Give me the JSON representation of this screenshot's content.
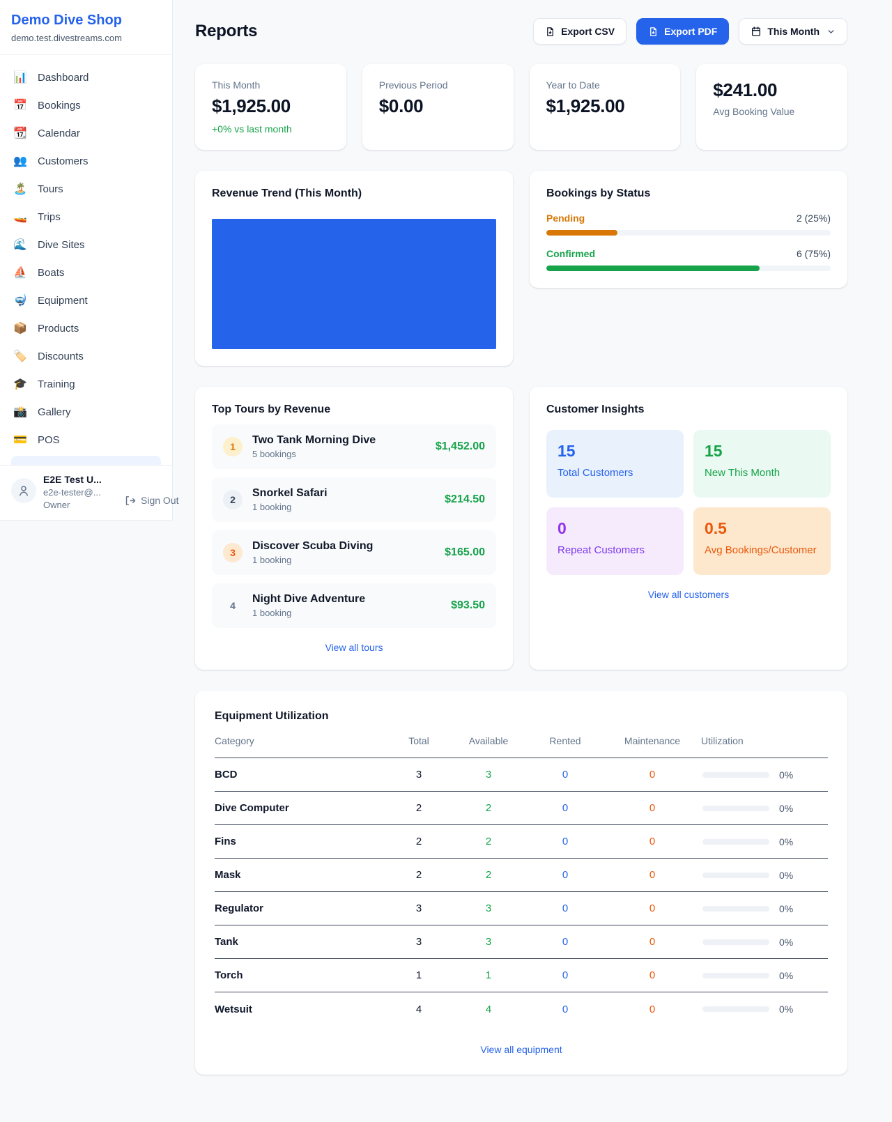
{
  "sidebar": {
    "brand": {
      "name": "Demo Dive Shop",
      "domain": "demo.test.divestreams.com"
    },
    "items": [
      {
        "icon": "📊",
        "label": "Dashboard"
      },
      {
        "icon": "📅",
        "label": "Bookings"
      },
      {
        "icon": "📆",
        "label": "Calendar"
      },
      {
        "icon": "👥",
        "label": "Customers"
      },
      {
        "icon": "🏝️",
        "label": "Tours"
      },
      {
        "icon": "🚤",
        "label": "Trips"
      },
      {
        "icon": "🌊",
        "label": "Dive Sites"
      },
      {
        "icon": "⛵",
        "label": "Boats"
      },
      {
        "icon": "🤿",
        "label": "Equipment"
      },
      {
        "icon": "📦",
        "label": "Products"
      },
      {
        "icon": "🏷️",
        "label": "Discounts"
      },
      {
        "icon": "🎓",
        "label": "Training"
      },
      {
        "icon": "📸",
        "label": "Gallery"
      },
      {
        "icon": "💳",
        "label": "POS"
      }
    ],
    "user": {
      "name": "E2E Test U...",
      "email": "e2e-tester@...",
      "role": "Owner",
      "sign_out_label": "Sign Out"
    }
  },
  "header": {
    "title": "Reports",
    "export_csv_label": "Export CSV",
    "export_pdf_label": "Export PDF",
    "period_label": "This Month"
  },
  "stats": [
    {
      "label": "This Month",
      "value": "$1,925.00",
      "delta": "+0% vs last month"
    },
    {
      "label": "Previous Period",
      "value": "$0.00"
    },
    {
      "label": "Year to Date",
      "value": "$1,925.00"
    },
    {
      "label": "Avg Booking Value",
      "value": "$241.00"
    }
  ],
  "revenue_trend": {
    "title": "Revenue Trend (This Month)",
    "bar_color": "#2563eb"
  },
  "bookings_by_status": {
    "title": "Bookings by Status",
    "items": [
      {
        "label": "Pending",
        "value_text": "2 (25%)",
        "pct": 25,
        "color": "#d97706"
      },
      {
        "label": "Confirmed",
        "value_text": "6 (75%)",
        "pct": 75,
        "color": "#16a34a"
      }
    ]
  },
  "top_tours": {
    "title": "Top Tours by Revenue",
    "items": [
      {
        "rank": "1",
        "name": "Two Tank Morning Dive",
        "bookings": "5 bookings",
        "revenue": "$1,452.00"
      },
      {
        "rank": "2",
        "name": "Snorkel Safari",
        "bookings": "1 booking",
        "revenue": "$214.50"
      },
      {
        "rank": "3",
        "name": "Discover Scuba Diving",
        "bookings": "1 booking",
        "revenue": "$165.00"
      },
      {
        "rank": "4",
        "name": "Night Dive Adventure",
        "bookings": "1 booking",
        "revenue": "$93.50"
      }
    ],
    "view_all_label": "View all tours"
  },
  "customer_insights": {
    "title": "Customer Insights",
    "tiles": [
      {
        "value": "15",
        "label": "Total Customers",
        "color": "#2563eb",
        "bg": "#e9f1fd"
      },
      {
        "value": "15",
        "label": "New This Month",
        "color": "#16a34a",
        "bg": "#eaf9f1"
      },
      {
        "value": "0",
        "label": "Repeat Customers",
        "color": "#9333ea",
        "bg": "#f6ebfc"
      },
      {
        "value": "0.5",
        "label": "Avg Bookings/Customer",
        "color": "#ea580c",
        "bg": "#fde8cd"
      }
    ],
    "view_all_label": "View all customers"
  },
  "equipment": {
    "title": "Equipment Utilization",
    "columns": [
      "Category",
      "Total",
      "Available",
      "Rented",
      "Maintenance",
      "Utilization"
    ],
    "rows": [
      {
        "category": "BCD",
        "total": "3",
        "available": "3",
        "rented": "0",
        "maintenance": "0",
        "utilization_pct": 0,
        "utilization": "0%"
      },
      {
        "category": "Dive Computer",
        "total": "2",
        "available": "2",
        "rented": "0",
        "maintenance": "0",
        "utilization_pct": 0,
        "utilization": "0%"
      },
      {
        "category": "Fins",
        "total": "2",
        "available": "2",
        "rented": "0",
        "maintenance": "0",
        "utilization_pct": 0,
        "utilization": "0%"
      },
      {
        "category": "Mask",
        "total": "2",
        "available": "2",
        "rented": "0",
        "maintenance": "0",
        "utilization_pct": 0,
        "utilization": "0%"
      },
      {
        "category": "Regulator",
        "total": "3",
        "available": "3",
        "rented": "0",
        "maintenance": "0",
        "utilization_pct": 0,
        "utilization": "0%"
      },
      {
        "category": "Tank",
        "total": "3",
        "available": "3",
        "rented": "0",
        "maintenance": "0",
        "utilization_pct": 0,
        "utilization": "0%"
      },
      {
        "category": "Torch",
        "total": "1",
        "available": "1",
        "rented": "0",
        "maintenance": "0",
        "utilization_pct": 0,
        "utilization": "0%"
      },
      {
        "category": "Wetsuit",
        "total": "4",
        "available": "4",
        "rented": "0",
        "maintenance": "0",
        "utilization_pct": 0,
        "utilization": "0%"
      }
    ],
    "view_all_label": "View all equipment"
  },
  "colors": {
    "accent_blue": "#2563eb",
    "positive_green": "#16a34a",
    "pending_orange": "#d97706",
    "maintenance_orange": "#ea580c",
    "repeat_purple": "#9333ea"
  }
}
